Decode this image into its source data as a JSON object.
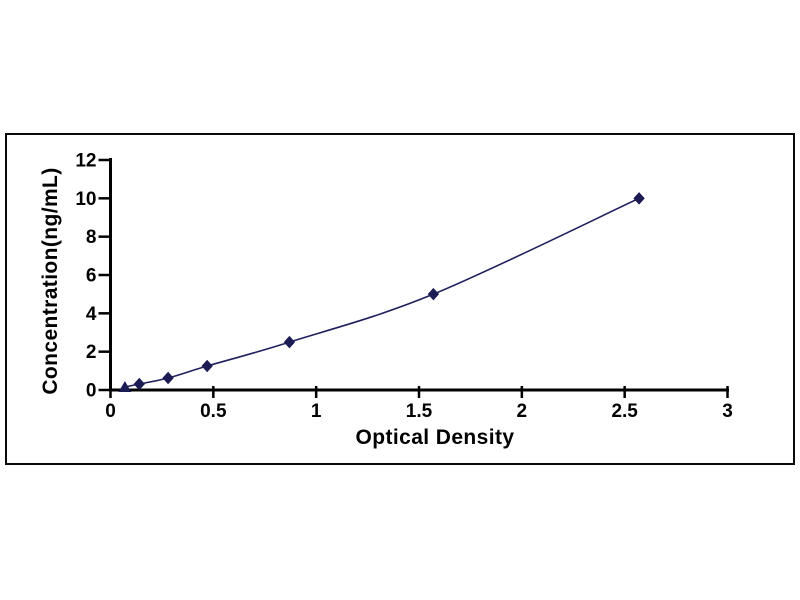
{
  "chart_data": {
    "type": "line",
    "title": "",
    "xlabel": "Optical Density",
    "ylabel": "Concentration(ng/mL)",
    "x": [
      0.07,
      0.14,
      0.28,
      0.47,
      0.87,
      1.57,
      2.57
    ],
    "y": [
      0.156,
      0.312,
      0.625,
      1.25,
      2.5,
      5,
      10
    ],
    "xlim": [
      0,
      3
    ],
    "ylim": [
      0,
      12
    ],
    "x_ticks": [
      0,
      0.5,
      1,
      1.5,
      2,
      2.5,
      3
    ],
    "y_ticks": [
      0,
      2,
      4,
      6,
      8,
      10,
      12
    ],
    "grid": false,
    "legend": false,
    "line_color": "#20205e",
    "marker_color": "#1c1c55",
    "axis_color": "#000000",
    "frame_color": "#0a0a0a",
    "marker": "diamond",
    "first_point_marker": "triangle"
  }
}
